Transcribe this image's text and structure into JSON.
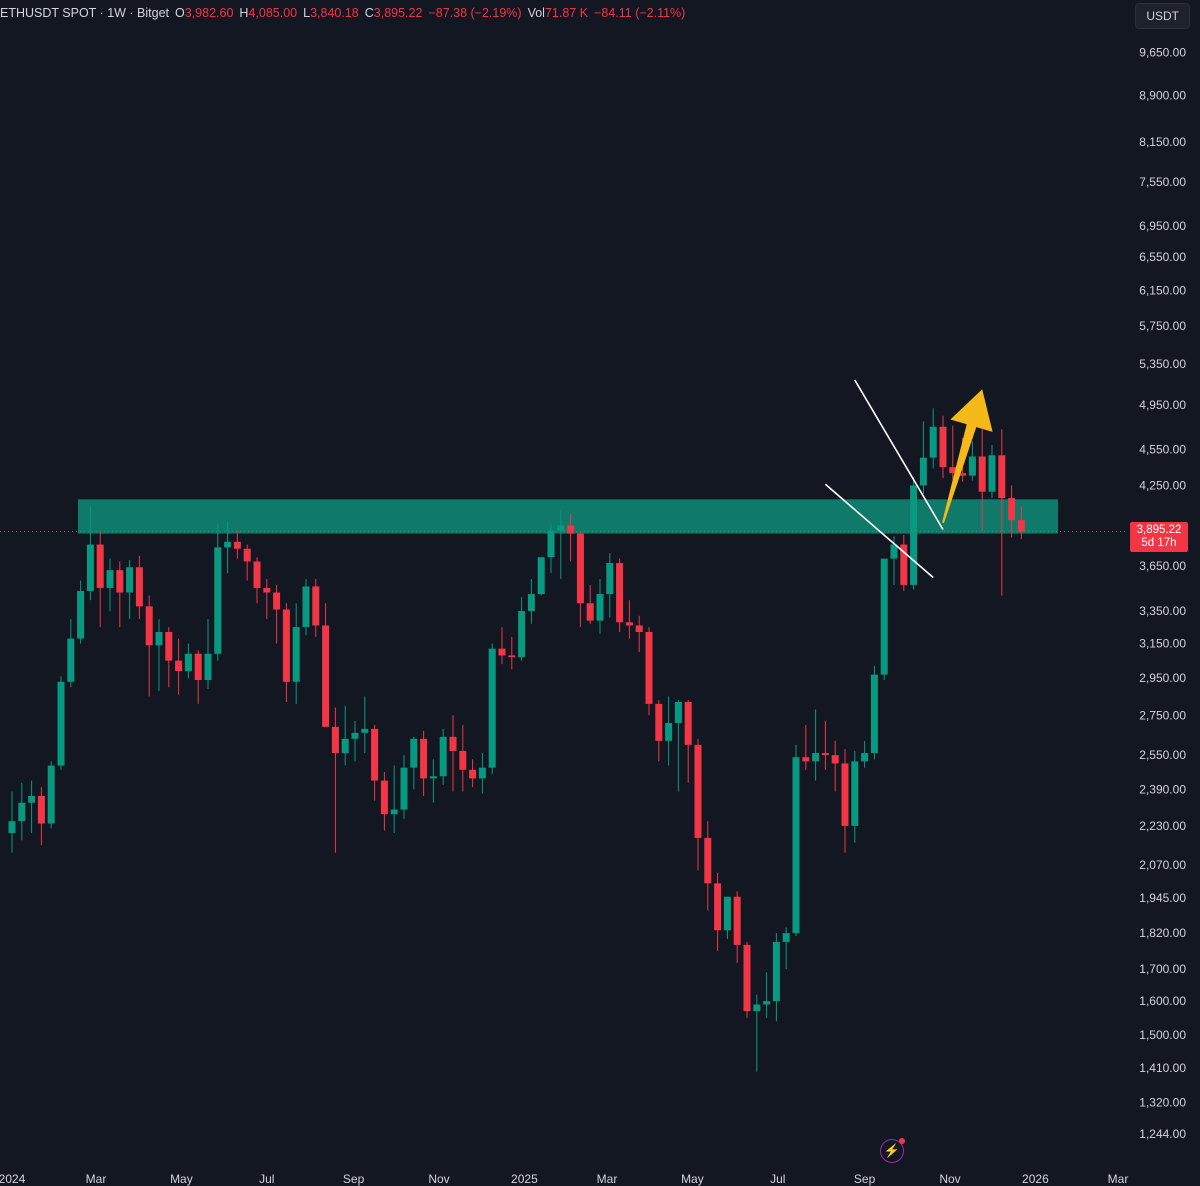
{
  "header": {
    "symbol": "ETHUSDT SPOT · 1W · Bitget",
    "open_label": "O",
    "open": "3,982.60",
    "high_label": "H",
    "high": "4,085.00",
    "low_label": "L",
    "low": "3,840.18",
    "close_label": "C",
    "close": "3,895.22",
    "change": "−87.38 (−2.19%)",
    "vol_label": "Vol",
    "vol": "71.87 K",
    "vol_change": "−84.11 (−2.11%)"
  },
  "currency_button": "USDT",
  "last_price": {
    "price": "3,895.22",
    "countdown": "5d 17h"
  },
  "colors": {
    "background": "#131722",
    "up": "#089981",
    "down": "#f23645",
    "zone": "#0f7a6a",
    "arrow": "#f6b91a",
    "trendline": "#ffffff"
  },
  "icons": {
    "alert": "lightning-icon"
  },
  "chart_data": {
    "type": "candlestick",
    "interval": "1W",
    "scale": "log",
    "y_ticks": [
      9650,
      8900,
      8150,
      7550,
      6950,
      6550,
      6150,
      5750,
      5350,
      4950,
      4550,
      4250,
      3650,
      3350,
      3150,
      2950,
      2750,
      2550,
      2390,
      2230,
      2070,
      1945,
      1820,
      1700,
      1600,
      1500,
      1410,
      1320,
      1244
    ],
    "y_tick_labels": [
      "9,650.00",
      "8,900.00",
      "8,150.00",
      "7,550.00",
      "6,950.00",
      "6,550.00",
      "6,150.00",
      "5,750.00",
      "5,350.00",
      "4,950.00",
      "4,550.00",
      "4,250.00",
      "3,650.00",
      "3,350.00",
      "3,150.00",
      "2,950.00",
      "2,750.00",
      "2,550.00",
      "2,390.00",
      "2,230.00",
      "2,070.00",
      "1,945.00",
      "1,820.00",
      "1,700.00",
      "1,600.00",
      "1,500.00",
      "1,410.00",
      "1,320.00",
      "1,244.00"
    ],
    "x_ticks": [
      "2024",
      "Mar",
      "May",
      "Jul",
      "Sep",
      "Nov",
      "2025",
      "Mar",
      "May",
      "Jul",
      "Sep",
      "Nov",
      "2026",
      "Mar"
    ],
    "x_tick_dates": [
      "2024-01-01",
      "2024-03-01",
      "2024-05-01",
      "2024-07-01",
      "2024-09-01",
      "2024-11-01",
      "2025-01-01",
      "2025-03-01",
      "2025-05-01",
      "2025-07-01",
      "2025-09-01",
      "2025-11-01",
      "2026-01-01",
      "2026-03-01"
    ],
    "candle_start": "2024-01-01",
    "candles": [
      [
        2200,
        2380,
        2120,
        2250
      ],
      [
        2250,
        2420,
        2170,
        2330
      ],
      [
        2330,
        2430,
        2200,
        2360
      ],
      [
        2360,
        2400,
        2150,
        2240
      ],
      [
        2240,
        2520,
        2220,
        2500
      ],
      [
        2500,
        2960,
        2480,
        2930
      ],
      [
        2930,
        3300,
        2900,
        3180
      ],
      [
        3180,
        3550,
        3150,
        3480
      ],
      [
        3480,
        4090,
        3420,
        3800
      ],
      [
        3800,
        3900,
        3250,
        3500
      ],
      [
        3500,
        3700,
        3350,
        3620
      ],
      [
        3620,
        3680,
        3250,
        3470
      ],
      [
        3470,
        3690,
        3300,
        3640
      ],
      [
        3640,
        3720,
        3300,
        3380
      ],
      [
        3380,
        3450,
        2850,
        3140
      ],
      [
        3140,
        3300,
        2880,
        3220
      ],
      [
        3220,
        3250,
        2900,
        3050
      ],
      [
        3050,
        3180,
        2860,
        2990
      ],
      [
        2990,
        3150,
        2950,
        3090
      ],
      [
        3090,
        3110,
        2810,
        2940
      ],
      [
        2940,
        3300,
        2890,
        3090
      ],
      [
        3090,
        3950,
        3050,
        3780
      ],
      [
        3780,
        3970,
        3600,
        3820
      ],
      [
        3820,
        3900,
        3700,
        3770
      ],
      [
        3770,
        3800,
        3550,
        3680
      ],
      [
        3680,
        3710,
        3400,
        3500
      ],
      [
        3500,
        3560,
        3300,
        3470
      ],
      [
        3470,
        3520,
        3150,
        3360
      ],
      [
        3360,
        3400,
        2820,
        2930
      ],
      [
        2930,
        3400,
        2810,
        3250
      ],
      [
        3250,
        3560,
        3200,
        3510
      ],
      [
        3510,
        3560,
        3190,
        3260
      ],
      [
        3260,
        3400,
        2700,
        2690
      ],
      [
        2690,
        2790,
        2120,
        2560
      ],
      [
        2560,
        2800,
        2500,
        2630
      ],
      [
        2630,
        2720,
        2520,
        2660
      ],
      [
        2660,
        2850,
        2560,
        2680
      ],
      [
        2680,
        2700,
        2340,
        2430
      ],
      [
        2430,
        2470,
        2210,
        2280
      ],
      [
        2280,
        2500,
        2200,
        2300
      ],
      [
        2300,
        2550,
        2260,
        2490
      ],
      [
        2490,
        2640,
        2390,
        2630
      ],
      [
        2630,
        2670,
        2360,
        2440
      ],
      [
        2440,
        2530,
        2330,
        2450
      ],
      [
        2450,
        2680,
        2410,
        2640
      ],
      [
        2640,
        2750,
        2380,
        2570
      ],
      [
        2570,
        2700,
        2380,
        2480
      ],
      [
        2480,
        2530,
        2400,
        2440
      ],
      [
        2440,
        2560,
        2370,
        2490
      ],
      [
        2490,
        3150,
        2460,
        3120
      ],
      [
        3120,
        3250,
        3030,
        3080
      ],
      [
        3080,
        3190,
        3000,
        3070
      ],
      [
        3070,
        3440,
        3050,
        3350
      ],
      [
        3350,
        3560,
        3270,
        3460
      ],
      [
        3460,
        3700,
        3450,
        3710
      ],
      [
        3710,
        3950,
        3600,
        3900
      ],
      [
        3900,
        4050,
        3560,
        3940
      ],
      [
        3940,
        4030,
        3680,
        3880
      ],
      [
        3880,
        3900,
        3250,
        3400
      ],
      [
        3400,
        3520,
        3270,
        3290
      ],
      [
        3290,
        3560,
        3210,
        3460
      ],
      [
        3460,
        3740,
        3310,
        3670
      ],
      [
        3670,
        3700,
        3220,
        3280
      ],
      [
        3280,
        3420,
        3180,
        3260
      ],
      [
        3260,
        3320,
        3100,
        3220
      ],
      [
        3220,
        3250,
        2750,
        2810
      ],
      [
        2810,
        2830,
        2520,
        2620
      ],
      [
        2620,
        2850,
        2500,
        2710
      ],
      [
        2710,
        2830,
        2380,
        2820
      ],
      [
        2820,
        2830,
        2420,
        2600
      ],
      [
        2600,
        2630,
        2050,
        2180
      ],
      [
        2180,
        2250,
        1900,
        2000
      ],
      [
        2000,
        2040,
        1760,
        1830
      ],
      [
        1830,
        1940,
        1800,
        1950
      ],
      [
        1950,
        1970,
        1720,
        1780
      ],
      [
        1780,
        1790,
        1550,
        1570
      ],
      [
        1570,
        1620,
        1400,
        1590
      ],
      [
        1590,
        1690,
        1550,
        1600
      ],
      [
        1600,
        1820,
        1540,
        1790
      ],
      [
        1790,
        1840,
        1700,
        1820
      ],
      [
        1820,
        2600,
        1810,
        2540
      ],
      [
        2540,
        2700,
        2480,
        2520
      ],
      [
        2520,
        2780,
        2430,
        2560
      ],
      [
        2560,
        2720,
        2480,
        2550
      ],
      [
        2550,
        2620,
        2380,
        2510
      ],
      [
        2510,
        2580,
        2120,
        2230
      ],
      [
        2230,
        2570,
        2160,
        2520
      ],
      [
        2520,
        2620,
        2490,
        2560
      ],
      [
        2560,
        3020,
        2530,
        2970
      ],
      [
        2970,
        3690,
        2940,
        3700
      ],
      [
        3700,
        3860,
        3520,
        3800
      ],
      [
        3800,
        3870,
        3480,
        3520
      ],
      [
        3520,
        4320,
        3490,
        4250
      ],
      [
        4250,
        4800,
        4180,
        4480
      ],
      [
        4480,
        4920,
        4390,
        4750
      ],
      [
        4750,
        4850,
        4310,
        4400
      ],
      [
        4400,
        4760,
        4300,
        4350
      ],
      [
        4350,
        4650,
        4280,
        4330
      ],
      [
        4330,
        4620,
        4290,
        4490
      ],
      [
        4490,
        4780,
        3900,
        4200
      ],
      [
        4200,
        4590,
        4150,
        4500
      ],
      [
        4500,
        4730,
        3450,
        4150
      ],
      [
        4150,
        4250,
        3850,
        3980
      ],
      [
        3980,
        4085,
        3840,
        3895
      ]
    ],
    "resistance_zone": {
      "low": 3880,
      "high": 4140
    },
    "trendline_upper": [
      [
        "2025-08-25",
        5190
      ],
      [
        "2025-10-27",
        3910
      ]
    ],
    "trendline_lower": [
      [
        "2025-08-04",
        4260
      ],
      [
        "2025-10-20",
        3570
      ]
    ],
    "projection_arrow": {
      "from": [
        "2025-10-27",
        3960
      ],
      "to": [
        "2025-11-24",
        5100
      ]
    }
  }
}
